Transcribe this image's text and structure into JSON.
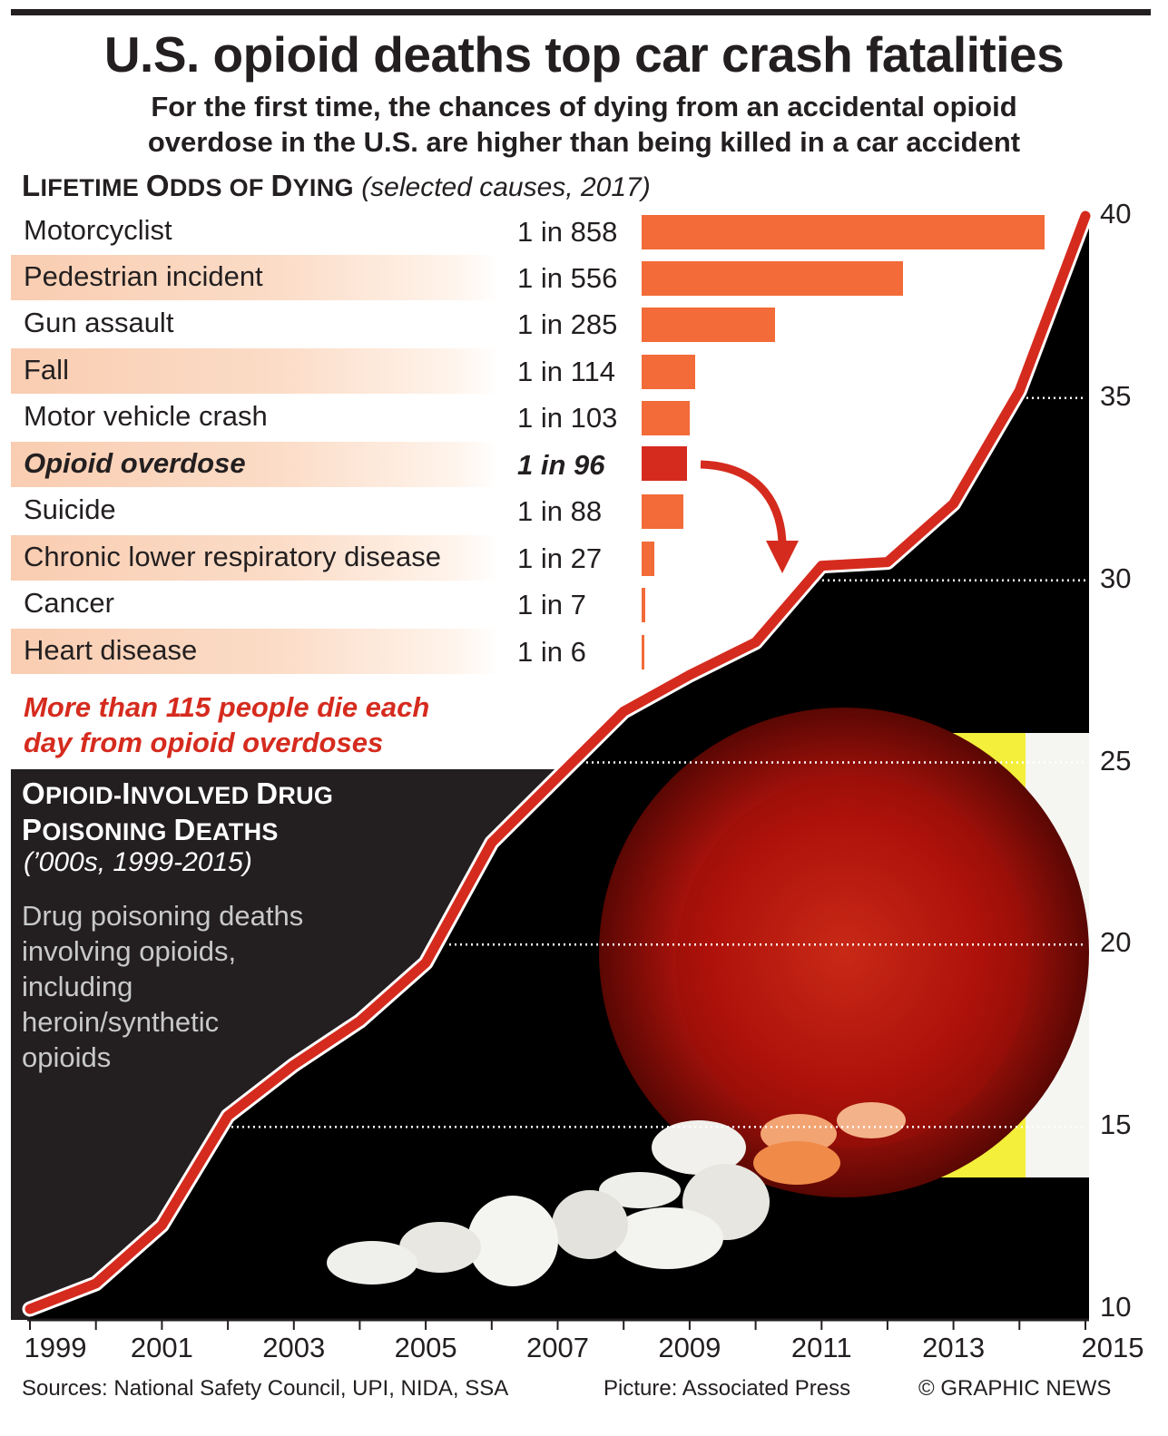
{
  "title": "U.S. opioid deaths top car crash fatalities",
  "subtitle_line1": "For the first time, the chances of dying from an accidental opioid",
  "subtitle_line2": "overdose in the U.S. are higher than being killed in a car accident",
  "odds": {
    "heading_w1_initial": "L",
    "heading_w1_rest": "IFETIME",
    "heading_w2_initial": "O",
    "heading_w2_rest": "DDS OF",
    "heading_w3_initial": "D",
    "heading_w3_rest": "YING",
    "heading_qualifier": "(selected causes, 2017)"
  },
  "note_line1": "More than 115 people die each",
  "note_line2": "day from opioid overdoses",
  "panel": {
    "h1_initial": "O",
    "h1_rest": "PIOID-",
    "h2_initial": "I",
    "h2_rest": "NVOLVED",
    "h3_initial": "D",
    "h3_rest": "RUG",
    "h4_initial": "P",
    "h4_rest": "OISONING",
    "h5_initial": "D",
    "h5_rest": "EATHS",
    "units": "(’000s, 1999-2015)",
    "desc_line1": "Drug poisoning deaths",
    "desc_line2": "involving opioids,",
    "desc_line3": "including",
    "desc_line4": "heroin/synthetic",
    "desc_line5": "opioids"
  },
  "footer": {
    "sources": "Sources: National Safety Council, UPI, NIDA, SSA",
    "picture": "Picture: Associated Press",
    "copyright": "© GRAPHIC NEWS"
  },
  "colors": {
    "bar": "#f26b38",
    "bar_highlight": "#d52b1e",
    "line": "#d52b1e",
    "panel": "#231f20",
    "row_shade": "#f9cdb1"
  },
  "chart_data": [
    {
      "type": "bar",
      "orientation": "horizontal",
      "title": "Lifetime Odds of Dying (selected causes, 2017)",
      "categories": [
        "Motorcyclist",
        "Pedestrian incident",
        "Gun assault",
        "Fall",
        "Motor vehicle crash",
        "Opioid overdose",
        "Suicide",
        "Chronic lower respiratory disease",
        "Cancer",
        "Heart disease"
      ],
      "labels": [
        "1 in 858",
        "1 in 556",
        "1 in 285",
        "1 in 114",
        "1 in 103",
        "1 in 96",
        "1 in 88",
        "1 in 27",
        "1 in 7",
        "1 in 6"
      ],
      "values": [
        858,
        556,
        285,
        114,
        103,
        96,
        88,
        27,
        7,
        6
      ],
      "highlight": "Opioid overdose"
    },
    {
      "type": "line",
      "title": "Opioid-Involved Drug Poisoning Deaths ('000s, 1999-2015)",
      "x": [
        1999,
        2000,
        2001,
        2002,
        2003,
        2004,
        2005,
        2006,
        2007,
        2008,
        2009,
        2010,
        2011,
        2012,
        2013,
        2014,
        2015
      ],
      "y": [
        10.0,
        10.7,
        12.3,
        15.3,
        16.7,
        17.9,
        19.5,
        22.8,
        24.6,
        26.4,
        27.4,
        28.3,
        30.4,
        30.5,
        32.1,
        35.2,
        40.0
      ],
      "xticks": [
        "1999",
        "2001",
        "2003",
        "2005",
        "2007",
        "2009",
        "2011",
        "2013",
        "2015"
      ],
      "yticks": [
        "10",
        "15",
        "20",
        "25",
        "30",
        "35",
        "40"
      ],
      "ylim": [
        10,
        40
      ],
      "xlim": [
        1999,
        2015
      ]
    }
  ]
}
